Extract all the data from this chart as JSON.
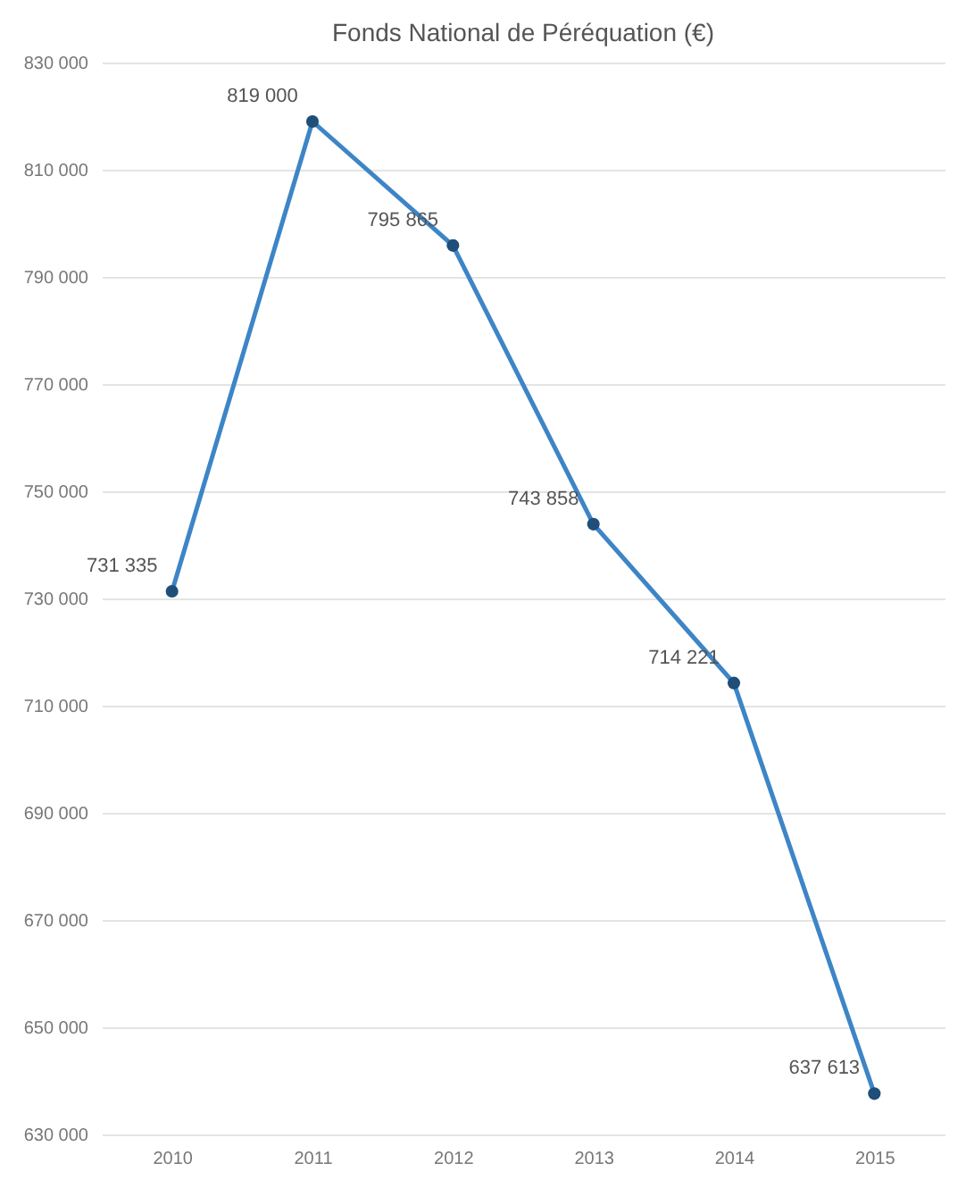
{
  "chart_data": {
    "type": "line",
    "title": "Fonds National de Péréquation (€)",
    "categories": [
      "2010",
      "2011",
      "2012",
      "2013",
      "2014",
      "2015"
    ],
    "series": [
      {
        "color": "#3d85c6",
        "values": [
          731335,
          819000,
          795865,
          743858,
          714221,
          637613
        ],
        "value_labels": [
          "731 335",
          "819 000",
          "795 865",
          "743 858",
          "714 221",
          "637 613"
        ]
      }
    ],
    "ylim": [
      630000,
      830000
    ],
    "yticks": [
      {
        "value": 630000,
        "label": "630 000"
      },
      {
        "value": 650000,
        "label": "650 000"
      },
      {
        "value": 670000,
        "label": "670 000"
      },
      {
        "value": 690000,
        "label": "690 000"
      },
      {
        "value": 710000,
        "label": "710 000"
      },
      {
        "value": 730000,
        "label": "730 000"
      },
      {
        "value": 750000,
        "label": "750 000"
      },
      {
        "value": 770000,
        "label": "770 000"
      },
      {
        "value": 790000,
        "label": "790 000"
      },
      {
        "value": 810000,
        "label": "810 000"
      },
      {
        "value": 830000,
        "label": "830 000"
      }
    ],
    "grid": "y",
    "marker": "circle",
    "line_style": "solid"
  }
}
